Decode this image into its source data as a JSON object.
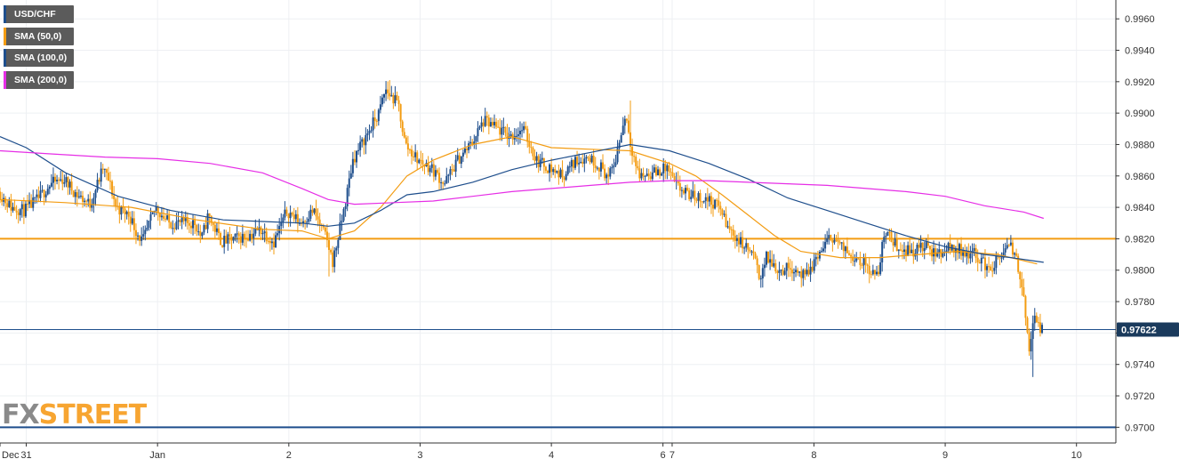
{
  "legend": [
    {
      "label": "USD/CHF",
      "color": "#1e4e8c"
    },
    {
      "label": "SMA (50,0)",
      "color": "#f39c12"
    },
    {
      "label": "SMA (100,0)",
      "color": "#1e4e8c"
    },
    {
      "label": "SMA (200,0)",
      "color": "#e62ee6"
    }
  ],
  "logo": {
    "fx": "FX",
    "street": "STREET"
  },
  "chart_data": {
    "type": "candlestick",
    "symbol": "USD/CHF",
    "ylim": [
      0.969,
      0.9972
    ],
    "y_ticks": [
      "0.9960",
      "0.9940",
      "0.9920",
      "0.9900",
      "0.9880",
      "0.9860",
      "0.9840",
      "0.9820",
      "0.9800",
      "0.9780",
      "0.9760",
      "0.9740",
      "0.9720",
      "0.9700"
    ],
    "x_ticks": [
      {
        "label": "Dec",
        "x": 0.0
      },
      {
        "label": "31",
        "x": 0.2
      },
      {
        "label": "Jan",
        "x": 1.2
      },
      {
        "label": "2",
        "x": 2.2
      },
      {
        "label": "3",
        "x": 3.2
      },
      {
        "label": "4",
        "x": 4.2
      },
      {
        "label": "6",
        "x": 5.05
      },
      {
        "label": "7",
        "x": 5.12
      },
      {
        "label": "8",
        "x": 6.2
      },
      {
        "label": "9",
        "x": 7.2
      },
      {
        "label": "10",
        "x": 8.2
      }
    ],
    "x_range": [
      0,
      8.5
    ],
    "current_price": "0.97622",
    "current_price_value": 0.97622,
    "horizontal_levels": [
      {
        "value": 0.982,
        "color": "#f39c12"
      },
      {
        "value": 0.97,
        "color": "#1e4e8c"
      }
    ],
    "price_path": [
      [
        0.0,
        0.985
      ],
      [
        0.1,
        0.984
      ],
      [
        0.2,
        0.9838
      ],
      [
        0.3,
        0.9845
      ],
      [
        0.4,
        0.9855
      ],
      [
        0.5,
        0.9858
      ],
      [
        0.6,
        0.9848
      ],
      [
        0.7,
        0.9842
      ],
      [
        0.8,
        0.9865
      ],
      [
        0.85,
        0.9855
      ],
      [
        0.9,
        0.984
      ],
      [
        1.0,
        0.9835
      ],
      [
        1.05,
        0.9825
      ],
      [
        1.1,
        0.9818
      ],
      [
        1.2,
        0.984
      ],
      [
        1.3,
        0.983
      ],
      [
        1.5,
        0.983
      ],
      [
        1.55,
        0.982
      ],
      [
        1.6,
        0.9835
      ],
      [
        1.7,
        0.9818
      ],
      [
        1.9,
        0.9822
      ],
      [
        2.0,
        0.9826
      ],
      [
        2.1,
        0.9818
      ],
      [
        2.2,
        0.9838
      ],
      [
        2.3,
        0.983
      ],
      [
        2.4,
        0.9838
      ],
      [
        2.5,
        0.982
      ],
      [
        2.55,
        0.9805
      ],
      [
        2.6,
        0.9825
      ],
      [
        2.65,
        0.9845
      ],
      [
        2.7,
        0.987
      ],
      [
        2.8,
        0.9885
      ],
      [
        2.9,
        0.99
      ],
      [
        2.95,
        0.9915
      ],
      [
        3.05,
        0.9905
      ],
      [
        3.1,
        0.988
      ],
      [
        3.2,
        0.987
      ],
      [
        3.3,
        0.9865
      ],
      [
        3.4,
        0.9855
      ],
      [
        3.5,
        0.987
      ],
      [
        3.6,
        0.988
      ],
      [
        3.7,
        0.9895
      ],
      [
        3.8,
        0.989
      ],
      [
        3.9,
        0.9885
      ],
      [
        4.0,
        0.989
      ],
      [
        4.1,
        0.987
      ],
      [
        4.2,
        0.9865
      ],
      [
        4.3,
        0.986
      ],
      [
        4.4,
        0.987
      ],
      [
        4.5,
        0.9872
      ],
      [
        4.6,
        0.9865
      ],
      [
        4.65,
        0.9858
      ],
      [
        4.7,
        0.987
      ],
      [
        4.78,
        0.99
      ],
      [
        4.82,
        0.988
      ],
      [
        4.88,
        0.986
      ],
      [
        5.0,
        0.9862
      ],
      [
        5.1,
        0.9865
      ],
      [
        5.15,
        0.9855
      ],
      [
        5.25,
        0.9848
      ],
      [
        5.4,
        0.9845
      ],
      [
        5.5,
        0.984
      ],
      [
        5.55,
        0.9828
      ],
      [
        5.65,
        0.9818
      ],
      [
        5.75,
        0.981
      ],
      [
        5.8,
        0.9795
      ],
      [
        5.85,
        0.9808
      ],
      [
        5.95,
        0.98
      ],
      [
        6.05,
        0.9802
      ],
      [
        6.15,
        0.9795
      ],
      [
        6.25,
        0.981
      ],
      [
        6.35,
        0.9822
      ],
      [
        6.45,
        0.9812
      ],
      [
        6.55,
        0.9808
      ],
      [
        6.65,
        0.98
      ],
      [
        6.7,
        0.9795
      ],
      [
        6.75,
        0.9825
      ],
      [
        6.85,
        0.9815
      ],
      [
        6.95,
        0.9812
      ],
      [
        7.05,
        0.9815
      ],
      [
        7.15,
        0.981
      ],
      [
        7.25,
        0.9815
      ],
      [
        7.35,
        0.9812
      ],
      [
        7.45,
        0.981
      ],
      [
        7.55,
        0.98
      ],
      [
        7.65,
        0.981
      ],
      [
        7.7,
        0.9815
      ],
      [
        7.75,
        0.981
      ],
      [
        7.8,
        0.979
      ],
      [
        7.85,
        0.975
      ],
      [
        7.9,
        0.977
      ],
      [
        7.95,
        0.9762
      ]
    ],
    "candle_extremes": [
      {
        "x": 2.97,
        "high": 0.9921
      },
      {
        "x": 4.8,
        "high": 0.9908
      },
      {
        "x": 7.87,
        "low": 0.9732
      },
      {
        "x": 2.5,
        "low": 0.9796
      }
    ],
    "series": [
      {
        "name": "SMA (50,0)",
        "color": "#f39c12",
        "points": [
          [
            0.0,
            0.9845
          ],
          [
            0.5,
            0.9843
          ],
          [
            1.0,
            0.984
          ],
          [
            1.5,
            0.9832
          ],
          [
            2.0,
            0.9826
          ],
          [
            2.3,
            0.9825
          ],
          [
            2.5,
            0.982
          ],
          [
            2.7,
            0.9825
          ],
          [
            2.9,
            0.984
          ],
          [
            3.1,
            0.986
          ],
          [
            3.3,
            0.987
          ],
          [
            3.6,
            0.988
          ],
          [
            3.9,
            0.9885
          ],
          [
            4.2,
            0.9878
          ],
          [
            4.5,
            0.9877
          ],
          [
            4.8,
            0.9876
          ],
          [
            5.1,
            0.9868
          ],
          [
            5.3,
            0.986
          ],
          [
            5.5,
            0.9848
          ],
          [
            5.7,
            0.9835
          ],
          [
            5.9,
            0.9822
          ],
          [
            6.1,
            0.9812
          ],
          [
            6.4,
            0.9808
          ],
          [
            6.7,
            0.9808
          ],
          [
            7.0,
            0.981
          ],
          [
            7.3,
            0.9812
          ],
          [
            7.6,
            0.981
          ],
          [
            7.9,
            0.9804
          ]
        ]
      },
      {
        "name": "SMA (100,0)",
        "color": "#1e4e8c",
        "points": [
          [
            0.0,
            0.9885
          ],
          [
            0.2,
            0.9878
          ],
          [
            0.5,
            0.9862
          ],
          [
            0.9,
            0.9847
          ],
          [
            1.3,
            0.9838
          ],
          [
            1.7,
            0.9832
          ],
          [
            2.0,
            0.9831
          ],
          [
            2.3,
            0.983
          ],
          [
            2.5,
            0.9828
          ],
          [
            2.7,
            0.983
          ],
          [
            2.9,
            0.9838
          ],
          [
            3.1,
            0.9848
          ],
          [
            3.3,
            0.985
          ],
          [
            3.6,
            0.9856
          ],
          [
            3.9,
            0.9864
          ],
          [
            4.2,
            0.987
          ],
          [
            4.5,
            0.9875
          ],
          [
            4.8,
            0.988
          ],
          [
            5.1,
            0.9876
          ],
          [
            5.4,
            0.9868
          ],
          [
            5.7,
            0.9858
          ],
          [
            6.0,
            0.9846
          ],
          [
            6.3,
            0.9838
          ],
          [
            6.6,
            0.983
          ],
          [
            6.9,
            0.9822
          ],
          [
            7.2,
            0.9815
          ],
          [
            7.5,
            0.981
          ],
          [
            7.7,
            0.9808
          ],
          [
            7.95,
            0.9805
          ]
        ]
      },
      {
        "name": "SMA (200,0)",
        "color": "#e62ee6",
        "points": [
          [
            0.0,
            0.9876
          ],
          [
            0.4,
            0.9874
          ],
          [
            0.8,
            0.9872
          ],
          [
            1.2,
            0.9871
          ],
          [
            1.6,
            0.9868
          ],
          [
            2.0,
            0.9862
          ],
          [
            2.3,
            0.9852
          ],
          [
            2.5,
            0.9845
          ],
          [
            2.7,
            0.9842
          ],
          [
            3.0,
            0.9843
          ],
          [
            3.3,
            0.9844
          ],
          [
            3.6,
            0.9847
          ],
          [
            3.9,
            0.985
          ],
          [
            4.2,
            0.9852
          ],
          [
            4.5,
            0.9854
          ],
          [
            4.8,
            0.9856
          ],
          [
            5.1,
            0.9857
          ],
          [
            5.4,
            0.9857
          ],
          [
            5.7,
            0.9856
          ],
          [
            6.0,
            0.9855
          ],
          [
            6.3,
            0.9854
          ],
          [
            6.6,
            0.9852
          ],
          [
            6.9,
            0.985
          ],
          [
            7.2,
            0.9847
          ],
          [
            7.5,
            0.9841
          ],
          [
            7.8,
            0.9837
          ],
          [
            7.95,
            0.9833
          ]
        ]
      }
    ]
  }
}
